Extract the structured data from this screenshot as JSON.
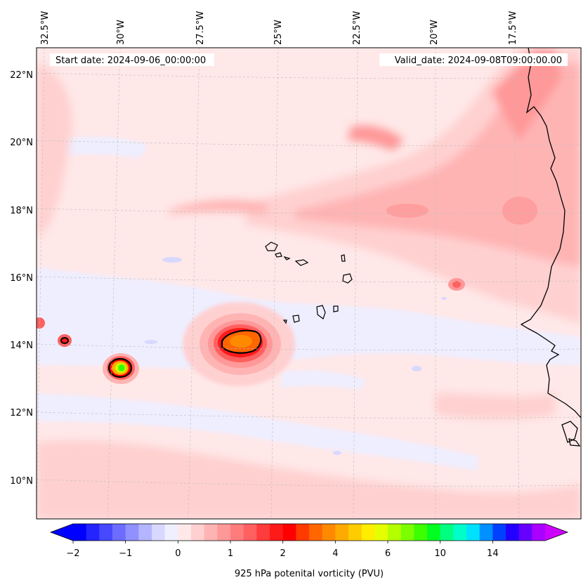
{
  "header": {
    "start_label": "Start date: 2024-09-06_00:00:00",
    "valid_label": "Valid_date: 2024-09-08T09:00:00.00"
  },
  "axes": {
    "lon_labels": [
      "32.5°W",
      "30°W",
      "27.5°W",
      "25°W",
      "22.5°W",
      "20°W",
      "17.5°W"
    ],
    "lat_labels": [
      "22°N",
      "20°N",
      "18°N",
      "16°N",
      "14°N",
      "12°N",
      "10°N"
    ]
  },
  "colorbar": {
    "label": "925 hPa potenital vorticity (PVU)",
    "tick_labels": [
      "−2",
      "−1",
      "0",
      "1",
      "2",
      "4",
      "6",
      "10",
      "14"
    ],
    "colors": [
      "#0000ff",
      "#2424ff",
      "#4848ff",
      "#6c6cff",
      "#9090ff",
      "#b4b4ff",
      "#d8d8ff",
      "#efefff",
      "#ffe8e8",
      "#ffd0d0",
      "#ffb4b4",
      "#ff9898",
      "#ff7c7c",
      "#ff6060",
      "#ff3c3c",
      "#ff1a1a",
      "#ff0000",
      "#ff3a00",
      "#ff6600",
      "#ff8a00",
      "#ffaa00",
      "#ffcc00",
      "#ffee00",
      "#e6ff00",
      "#b4ff00",
      "#7cff00",
      "#3cff00",
      "#00ff20",
      "#00ff80",
      "#00ffc8",
      "#00e0ff",
      "#0090ff",
      "#0040ff",
      "#2200ff",
      "#6600ff",
      "#aa00ff"
    ],
    "extend_min_color": "#0000ff",
    "extend_max_color": "#cc00ff"
  },
  "colors": {
    "background_field": "#ffe8e8",
    "coastline": "#000000"
  }
}
